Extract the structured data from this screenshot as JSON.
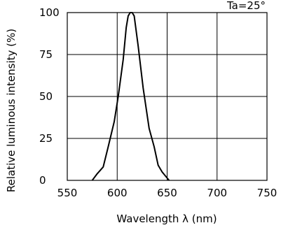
{
  "chart_data": {
    "type": "line",
    "title": "",
    "annotation": "Ta=25°",
    "xlabel": "Wavelength λ (nm)",
    "ylabel": "Relative luminous intensity (%)",
    "xlim": [
      550,
      750
    ],
    "ylim": [
      0,
      100
    ],
    "x_ticks": [
      "550",
      "600",
      "650",
      "700",
      "750"
    ],
    "y_ticks": [
      "0",
      "25",
      "50",
      "75",
      "100"
    ],
    "grid": true,
    "series": [
      {
        "x": [
          575,
          580,
          586,
          591,
          597,
          601,
          606,
          609,
          611,
          613,
          615,
          617,
          621,
          626,
          632,
          637,
          641,
          645,
          652
        ],
        "y": [
          0,
          4,
          8,
          20,
          35,
          50,
          72,
          91,
          98,
          100,
          100,
          98,
          80,
          55,
          31,
          20,
          9,
          5,
          0
        ]
      }
    ]
  }
}
